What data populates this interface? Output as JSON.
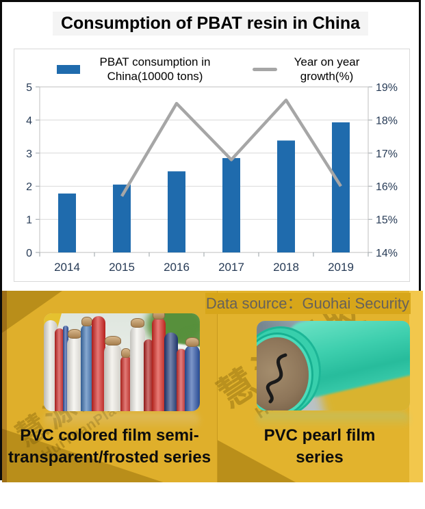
{
  "header": {
    "title": "Consumption of PBAT resin in China"
  },
  "chart_data": {
    "type": "bar",
    "subtype": "combo bar+line with dual y-axes",
    "categories": [
      "2014",
      "2015",
      "2016",
      "2017",
      "2018",
      "2019"
    ],
    "series": [
      {
        "name": "PBAT consumption in China(10000 tons)",
        "type": "bar",
        "axis": "left",
        "color": "#1F6BAD",
        "values": [
          1.78,
          2.05,
          2.45,
          2.85,
          3.38,
          3.93
        ]
      },
      {
        "name": "Year on year growth(%)",
        "type": "line",
        "axis": "right",
        "color": "#A6A6A6",
        "values": [
          null,
          15.7,
          18.5,
          16.8,
          18.6,
          16.0
        ]
      }
    ],
    "left_axis": {
      "min": 0,
      "max": 5,
      "step": 1,
      "tick_labels": [
        "0",
        "1",
        "2",
        "3",
        "4",
        "5"
      ]
    },
    "right_axis": {
      "min": 14,
      "max": 19,
      "step": 1,
      "tick_labels": [
        "14%",
        "15%",
        "16%",
        "17%",
        "18%",
        "19%"
      ]
    },
    "legend_position": "top",
    "grid": true,
    "title": "Consumption of PBAT resin in China"
  },
  "bottom": {
    "data_source": "Data source：Guohai Security",
    "left_caption": "PVC colored film semi-transparent/frosted series",
    "right_caption": "PVC pearl film series",
    "watermark_cn": "慧源塑胶",
    "watermark_en": "HuiYuanPlastic"
  },
  "colors": {
    "bar_blue": "#1F6BAD",
    "line_gray": "#A6A6A6",
    "gridline": "#D9D9D9",
    "plot_border": "#BFBFBF",
    "axis_label": "#263A55",
    "panel_yellow_left": "#DFAF2B",
    "panel_yellow_right": "#E2B32D",
    "gold_dark_wedge": "#AA8113",
    "datasource_bg": "#D7A61A",
    "datasource_text": "#66615A"
  }
}
